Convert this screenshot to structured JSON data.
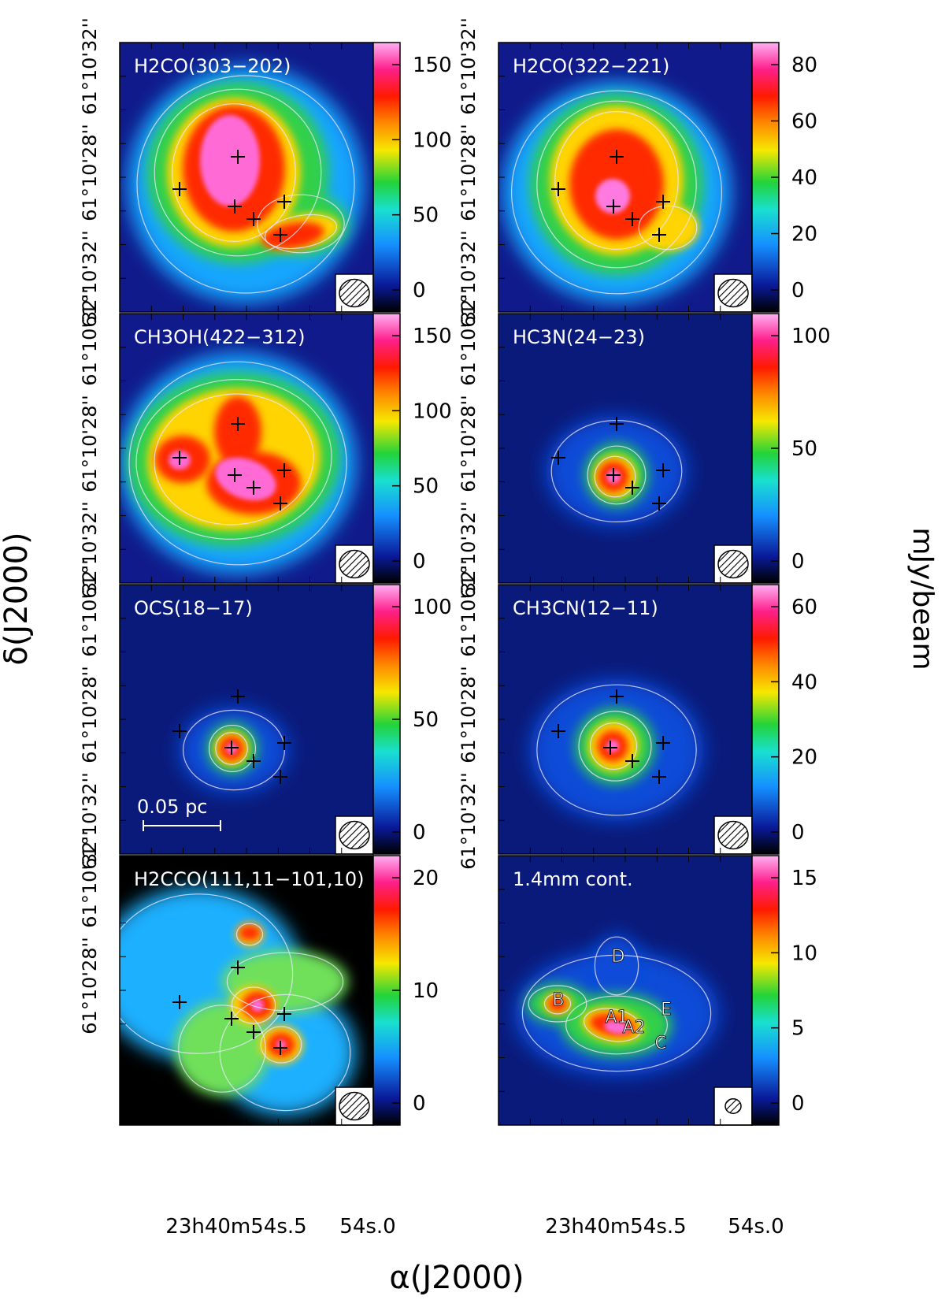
{
  "figure": {
    "y_axis_label": "δ(J2000)",
    "x_axis_label": "α(J2000)",
    "colorbar_unit": "mJy/beam",
    "dec_tick_labels": [
      "61°10'32''",
      "61°10'28''",
      "61°10'32''"
    ],
    "ra_tick_labels": {
      "main": "23h40m54s.5",
      "right": "54s.0"
    },
    "scale_bar_label": "0.05 pc"
  },
  "panels": [
    {
      "id": "h2co-303",
      "title": "H2CO(303−202)",
      "colorbar_ticks": [
        "150",
        "100",
        "50",
        "0"
      ],
      "colors": {
        "peak": "#ff6ad5",
        "mid": "#ff2a00",
        "edge": "#ffd400",
        "outer": "#32d04a",
        "halo": "#15a6ff",
        "bg": "#101a8a"
      }
    },
    {
      "id": "h2co-322",
      "title": "H2CO(322−221)",
      "colorbar_ticks": [
        "80",
        "60",
        "40",
        "20",
        "0"
      ],
      "colors": {
        "peak": "#ff7ae0",
        "mid": "#ff2a00",
        "edge": "#ffd400",
        "outer": "#32d04a",
        "halo": "#15a6ff",
        "bg": "#101a8a"
      }
    },
    {
      "id": "ch3oh",
      "title": "CH3OH(422−312)",
      "colorbar_ticks": [
        "150",
        "100",
        "50",
        "0"
      ],
      "colors": {
        "peak": "#ff6ad5",
        "mid": "#ff2a00",
        "edge": "#ffd400",
        "outer": "#32d04a",
        "halo": "#15a6ff",
        "bg": "#101a8a"
      }
    },
    {
      "id": "hc3n",
      "title": "HC3N(24−23)",
      "colorbar_ticks": [
        "100",
        "50",
        "0"
      ],
      "colors": {
        "peak": "#ff6ad5",
        "mid": "#ff2a00",
        "edge": "#ffd400",
        "outer": "#32d04a",
        "halo": "#0c4cd8",
        "bg": "#0a1a7a"
      }
    },
    {
      "id": "ocs",
      "title": "OCS(18−17)",
      "colorbar_ticks": [
        "100",
        "50",
        "0"
      ],
      "colors": {
        "peak": "#ff6ad5",
        "mid": "#ff2a00",
        "edge": "#ffd400",
        "outer": "#32d04a",
        "halo": "#0c4cd8",
        "bg": "#0a1a7a"
      }
    },
    {
      "id": "ch3cn",
      "title": "CH3CN(12−11)",
      "colorbar_ticks": [
        "60",
        "40",
        "20",
        "0"
      ],
      "colors": {
        "peak": "#ff6ad5",
        "mid": "#ff2a00",
        "edge": "#ffd400",
        "outer": "#32d04a",
        "halo": "#0c4cd8",
        "bg": "#0a1a7a"
      }
    },
    {
      "id": "h2cco",
      "title": "H2CCO(111,11−101,10)",
      "colorbar_ticks": [
        "20",
        "10",
        "0"
      ],
      "colors": {
        "peak": "#ff6ad5",
        "mid": "#ff2a00",
        "edge": "#ffd400",
        "outer": "#6fe05a",
        "halo": "#1ab0ff",
        "bg": "#000000"
      }
    },
    {
      "id": "cont",
      "title": "1.4mm cont.",
      "colorbar_ticks": [
        "15",
        "10",
        "5",
        "0"
      ],
      "colors": {
        "peak": "#ff6ad5",
        "mid": "#ff2a00",
        "edge": "#ffd400",
        "outer": "#32d04a",
        "halo": "#0c4cd8",
        "bg": "#0a1a7a"
      }
    }
  ],
  "continuum_sources": [
    "A1",
    "A2",
    "B",
    "C",
    "D",
    "E"
  ]
}
